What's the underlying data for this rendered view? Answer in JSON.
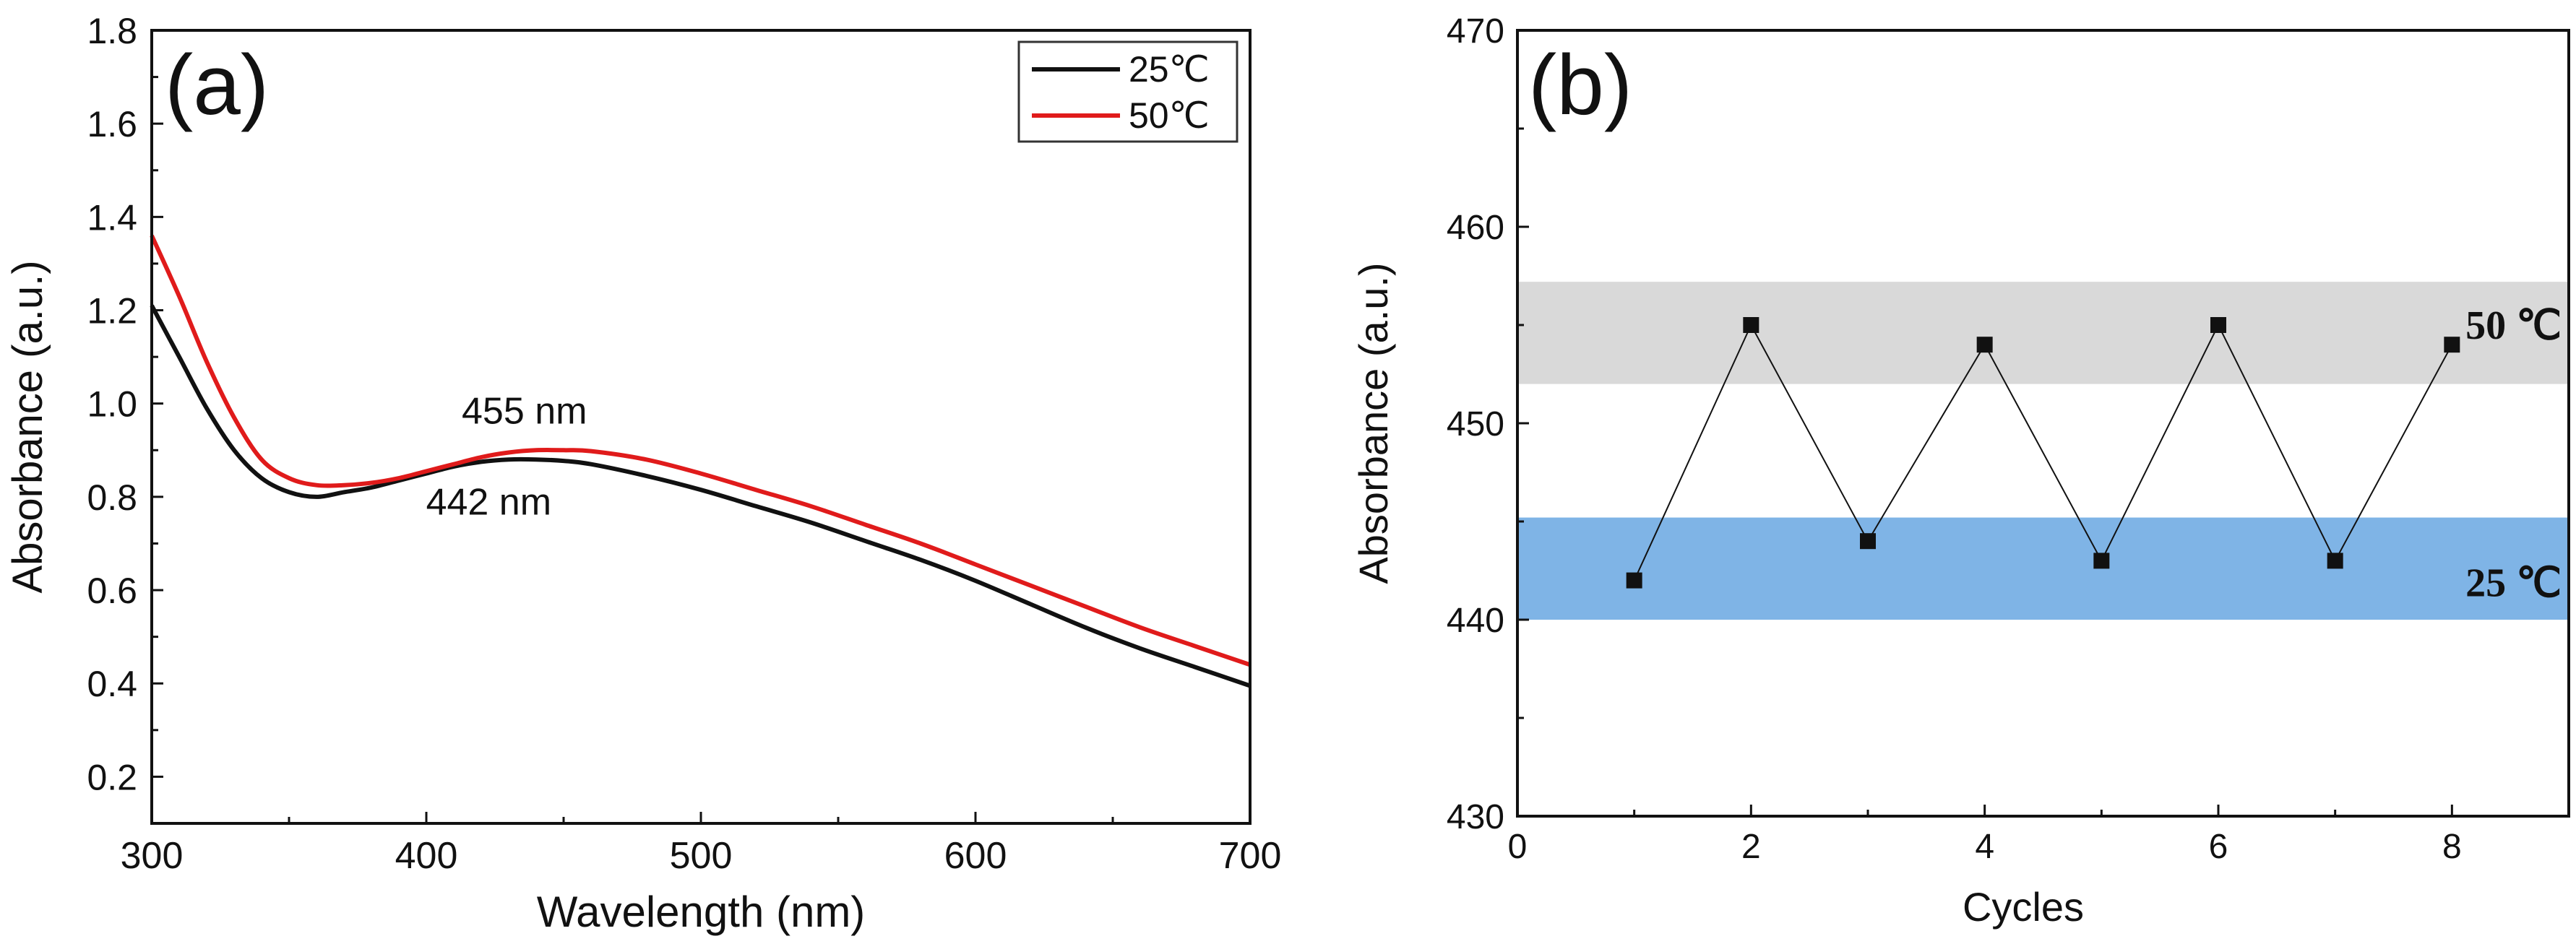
{
  "chart_data": [
    {
      "panel": "a",
      "panel_label": "(a)",
      "type": "line",
      "xlabel": "Wavelength (nm)",
      "ylabel": "Absorbance (a.u.)",
      "xlim": [
        300,
        700
      ],
      "ylim": [
        0.1,
        1.8
      ],
      "x_ticks": [
        300,
        400,
        500,
        600,
        700
      ],
      "y_ticks": [
        0.2,
        0.4,
        0.6,
        0.8,
        1.0,
        1.2,
        1.4,
        1.6,
        1.8
      ],
      "x_tick_labels": [
        "300",
        "400",
        "500",
        "600",
        "700"
      ],
      "y_tick_labels": [
        "0.2",
        "0.4",
        "0.6",
        "0.8",
        "1.0",
        "1.2",
        "1.4",
        "1.6",
        "1.8"
      ],
      "legend": {
        "placement": "top-right",
        "entries": [
          "25℃",
          "50℃"
        ]
      },
      "series": [
        {
          "name": "25℃",
          "color": "#111111",
          "x": [
            300,
            310,
            320,
            330,
            340,
            350,
            360,
            370,
            380,
            390,
            400,
            410,
            420,
            430,
            440,
            450,
            460,
            480,
            500,
            520,
            540,
            560,
            580,
            600,
            620,
            640,
            660,
            680,
            700
          ],
          "y": [
            1.21,
            1.1,
            0.99,
            0.9,
            0.84,
            0.81,
            0.8,
            0.81,
            0.82,
            0.835,
            0.85,
            0.865,
            0.875,
            0.88,
            0.88,
            0.877,
            0.87,
            0.845,
            0.815,
            0.78,
            0.745,
            0.705,
            0.665,
            0.62,
            0.57,
            0.52,
            0.475,
            0.435,
            0.395
          ]
        },
        {
          "name": "50℃",
          "color": "#e01b1b",
          "x": [
            300,
            310,
            320,
            330,
            340,
            350,
            360,
            370,
            380,
            390,
            400,
            410,
            420,
            430,
            440,
            450,
            460,
            480,
            500,
            520,
            540,
            560,
            580,
            600,
            620,
            640,
            660,
            680,
            700
          ],
          "y": [
            1.36,
            1.23,
            1.09,
            0.97,
            0.88,
            0.84,
            0.825,
            0.825,
            0.83,
            0.84,
            0.855,
            0.87,
            0.885,
            0.895,
            0.9,
            0.9,
            0.898,
            0.88,
            0.85,
            0.815,
            0.78,
            0.74,
            0.7,
            0.655,
            0.61,
            0.565,
            0.52,
            0.48,
            0.44
          ]
        }
      ],
      "annotations": [
        {
          "text": "455 nm",
          "color": "#e01b1b",
          "x": 455,
          "y": 0.985
        },
        {
          "text": "442 nm",
          "color": "#111111",
          "x": 442,
          "y": 0.79
        }
      ]
    },
    {
      "panel": "b",
      "panel_label": "(b)",
      "type": "line",
      "xlabel": "Cycles",
      "ylabel": "Absorbance (a.u.)",
      "xlim": [
        0,
        9
      ],
      "ylim": [
        430,
        470
      ],
      "x_ticks": [
        0,
        2,
        4,
        6,
        8
      ],
      "y_ticks": [
        430,
        440,
        450,
        460,
        470
      ],
      "x_tick_labels": [
        "0",
        "2",
        "4",
        "6",
        "8"
      ],
      "y_tick_labels": [
        "430",
        "440",
        "450",
        "460",
        "470"
      ],
      "series": [
        {
          "name": "cycles",
          "color": "#111111",
          "marker": "square",
          "x": [
            1,
            2,
            3,
            4,
            5,
            6,
            7,
            8
          ],
          "y": [
            442,
            455,
            444,
            454,
            443,
            455,
            443,
            454
          ]
        }
      ],
      "bands": [
        {
          "label": "50 ℃",
          "y_range": [
            452,
            457.2
          ],
          "color": "#d9d9d9"
        },
        {
          "label": "25 ℃",
          "y_range": [
            440,
            445.2
          ],
          "color": "#7fb4e6"
        }
      ]
    }
  ]
}
